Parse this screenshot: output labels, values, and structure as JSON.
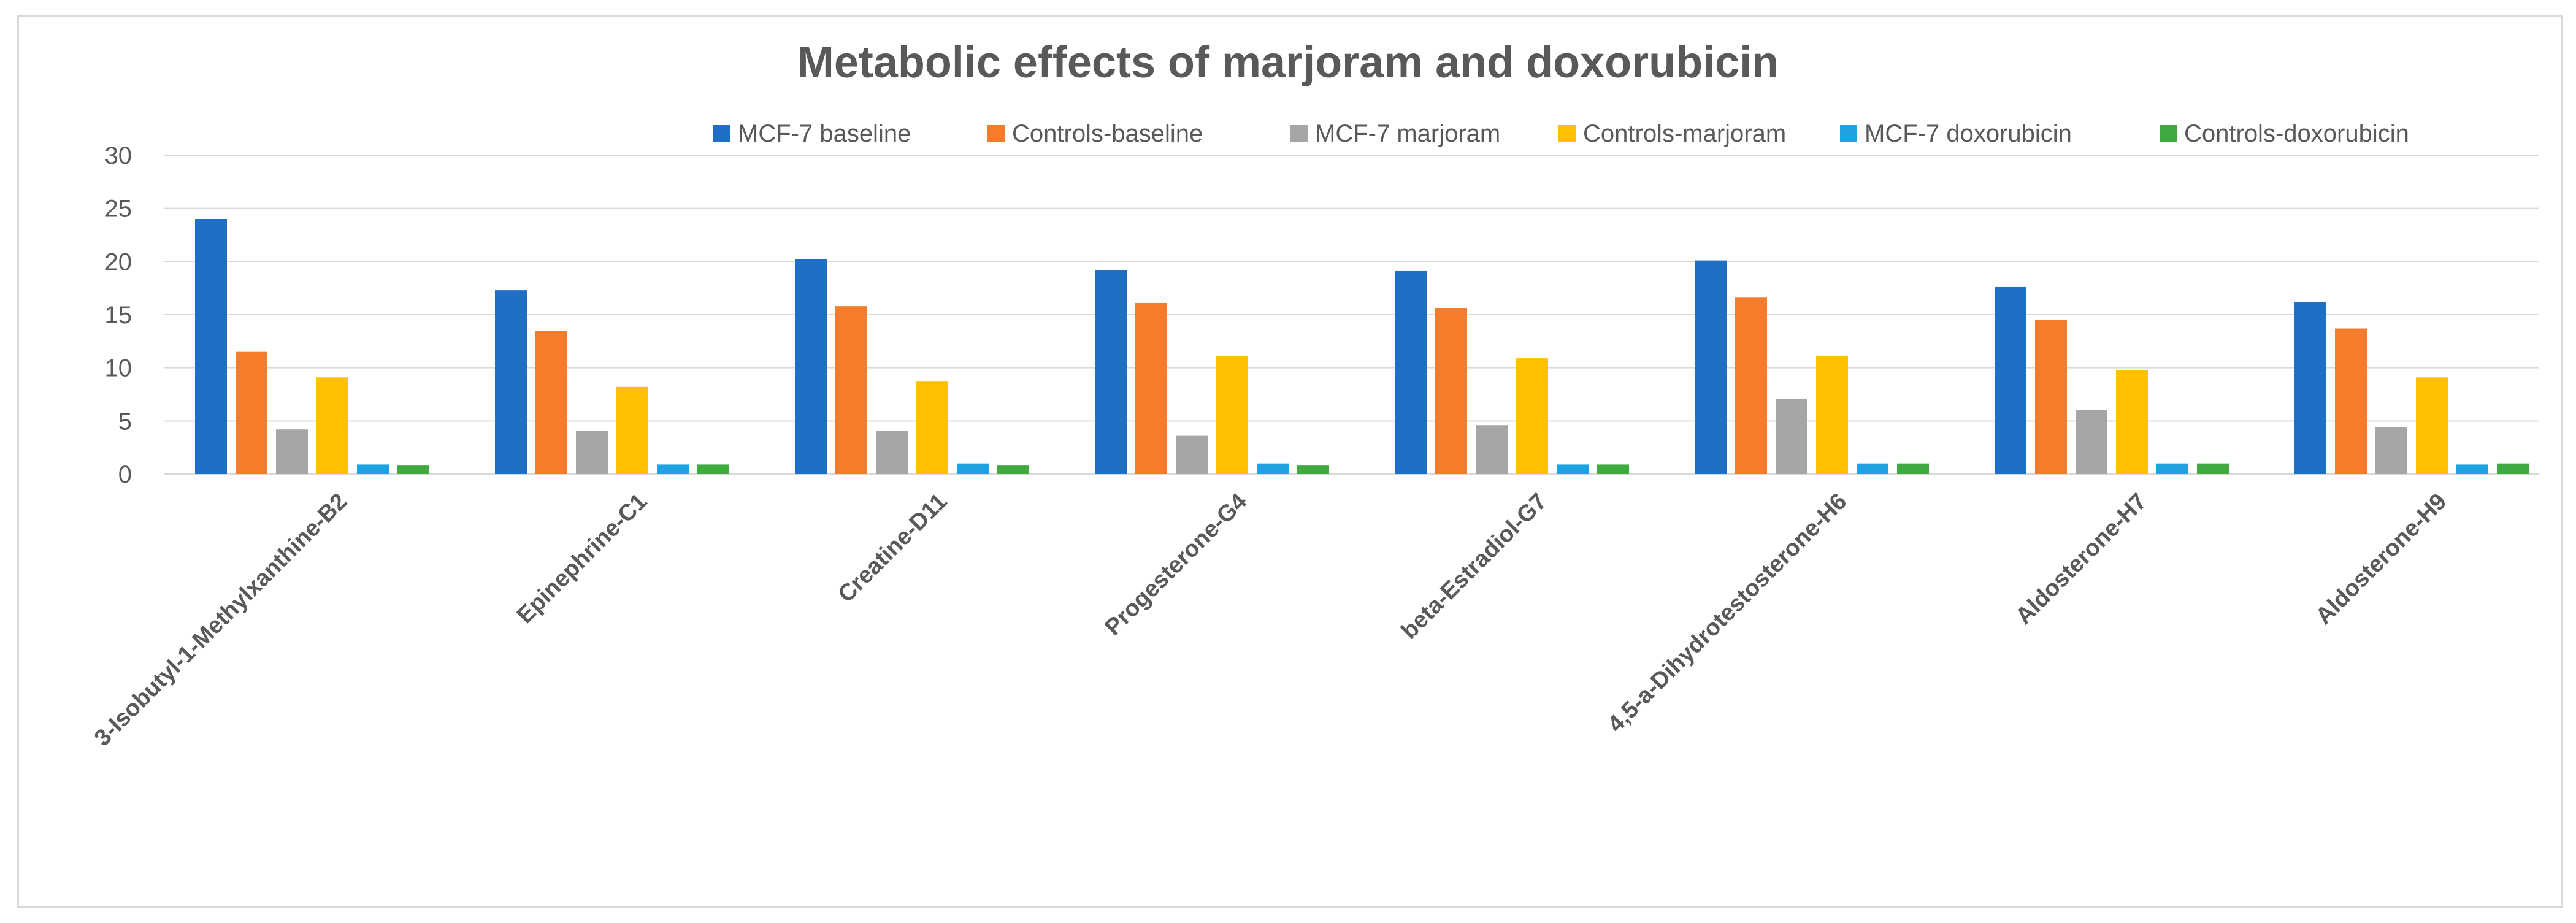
{
  "chart_data": {
    "type": "bar",
    "title": "Metabolic effects of marjoram and doxorubicin",
    "xlabel": "",
    "ylabel": "",
    "ylim": [
      0,
      30
    ],
    "yticks": [
      "0",
      "5",
      "10",
      "15",
      "20",
      "25",
      "30"
    ],
    "grid": true,
    "legend_position": "top-right",
    "categories": [
      "3-Isobutyl-1-Methylxanthine-B2",
      "Epinephrine-C1",
      "Creatine-D11",
      "Progesterone-G4",
      "beta-Estradiol-G7",
      "4,5-a-Dihydrotestosterone-H6",
      "Aldosterone-H7",
      "Aldosterone-H9"
    ],
    "series": [
      {
        "name": "MCF-7 baseline",
        "color": "#1f6fc6",
        "values": [
          24.0,
          17.3,
          20.2,
          19.2,
          19.1,
          20.1,
          17.6,
          16.2
        ]
      },
      {
        "name": "Controls-baseline",
        "color": "#f47c2a",
        "values": [
          11.5,
          13.5,
          15.8,
          16.1,
          15.6,
          16.6,
          14.5,
          13.7
        ]
      },
      {
        "name": "MCF-7 marjoram",
        "color": "#a6a6a6",
        "values": [
          4.2,
          4.1,
          4.1,
          3.6,
          4.6,
          7.1,
          6.0,
          4.4
        ]
      },
      {
        "name": "Controls-marjoram",
        "color": "#ffc000",
        "values": [
          9.1,
          8.2,
          8.7,
          11.1,
          10.9,
          11.1,
          9.8,
          9.1
        ]
      },
      {
        "name": "MCF-7 doxorubicin",
        "color": "#1fa2e0",
        "values": [
          0.9,
          0.9,
          1.0,
          1.0,
          0.9,
          1.0,
          1.0,
          0.9
        ]
      },
      {
        "name": "Controls-doxorubicin",
        "color": "#3faa3f",
        "values": [
          0.8,
          0.9,
          0.8,
          0.8,
          0.9,
          1.0,
          1.0,
          1.0
        ]
      }
    ]
  }
}
